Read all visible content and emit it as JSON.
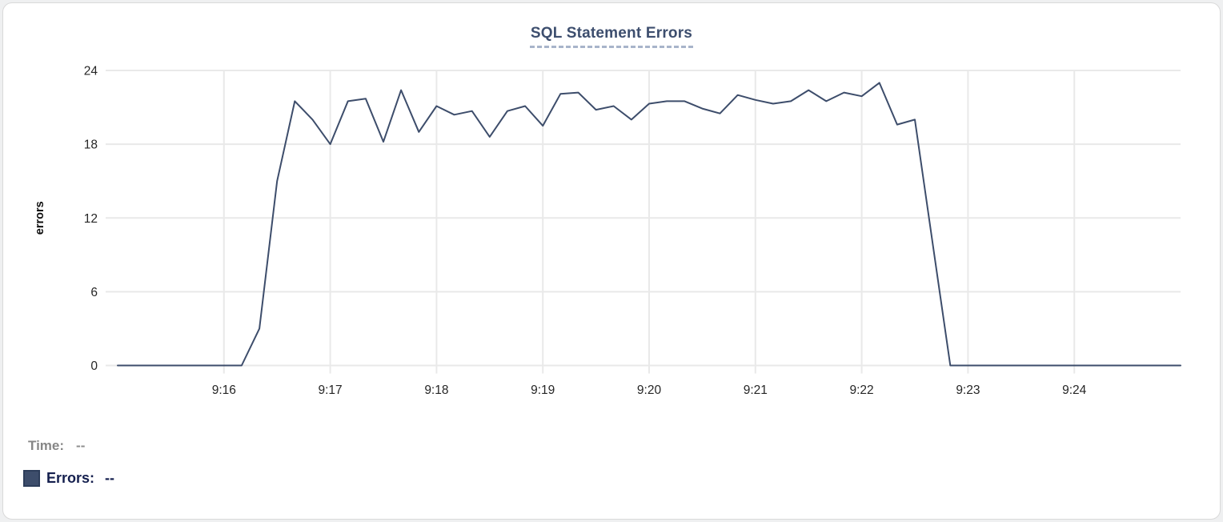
{
  "chart_data": {
    "type": "line",
    "title": "SQL Statement Errors",
    "xlabel": "",
    "ylabel": "errors",
    "series_name": "Errors",
    "line_color": "#3d4d6b",
    "grid_color": "#e9e9e9",
    "axis_text_color": "#262626",
    "grid": true,
    "legend_position": "bottom-left",
    "ylim": [
      0,
      24
    ],
    "y_ticks": [
      0,
      6,
      12,
      18,
      24
    ],
    "x_ticks": [
      "9:16",
      "9:17",
      "9:18",
      "9:19",
      "9:20",
      "9:21",
      "9:22",
      "9:23",
      "9:24"
    ],
    "x": [
      "9:15:00",
      "9:15:10",
      "9:15:20",
      "9:15:30",
      "9:15:40",
      "9:15:50",
      "9:16:00",
      "9:16:10",
      "9:16:20",
      "9:16:30",
      "9:16:40",
      "9:16:50",
      "9:17:00",
      "9:17:10",
      "9:17:20",
      "9:17:30",
      "9:17:40",
      "9:17:50",
      "9:18:00",
      "9:18:10",
      "9:18:20",
      "9:18:30",
      "9:18:40",
      "9:18:50",
      "9:19:00",
      "9:19:10",
      "9:19:20",
      "9:19:30",
      "9:19:40",
      "9:19:50",
      "9:20:00",
      "9:20:10",
      "9:20:20",
      "9:20:30",
      "9:20:40",
      "9:20:50",
      "9:21:00",
      "9:21:10",
      "9:21:20",
      "9:21:30",
      "9:21:40",
      "9:21:50",
      "9:22:00",
      "9:22:10",
      "9:22:20",
      "9:22:30",
      "9:22:40",
      "9:22:50",
      "9:23:00",
      "9:23:10",
      "9:23:20",
      "9:23:30",
      "9:23:40",
      "9:23:50",
      "9:24:00",
      "9:24:10",
      "9:24:20",
      "9:24:30",
      "9:24:40",
      "9:24:50",
      "9:25:00"
    ],
    "values": [
      0,
      0,
      0,
      0,
      0,
      0,
      0,
      0,
      3,
      15,
      21.5,
      20,
      18,
      21.5,
      21.7,
      18.2,
      22.4,
      19,
      21.1,
      20.4,
      20.7,
      18.6,
      20.7,
      21.1,
      19.5,
      22.1,
      22.2,
      20.8,
      21.1,
      20,
      21.3,
      21.5,
      21.5,
      20.9,
      20.5,
      22,
      21.6,
      21.3,
      21.5,
      22.4,
      21.5,
      22.2,
      21.9,
      23,
      19.6,
      20,
      10,
      0,
      0,
      0,
      0,
      0,
      0,
      0,
      0,
      0,
      0,
      0,
      0,
      0,
      0
    ]
  },
  "tooltip": {
    "time_label": "Time:",
    "time_value": "--",
    "errors_label": "Errors:",
    "errors_value": "--",
    "swatch_color": "#3d4d6b"
  },
  "colors": {
    "card_background": "#ffffff",
    "card_border": "#d9d9d9",
    "title_color": "#3d4e6e",
    "title_underline": "#a8b4ca",
    "time_label_color": "#868686",
    "errors_label_color": "#141f4e"
  }
}
